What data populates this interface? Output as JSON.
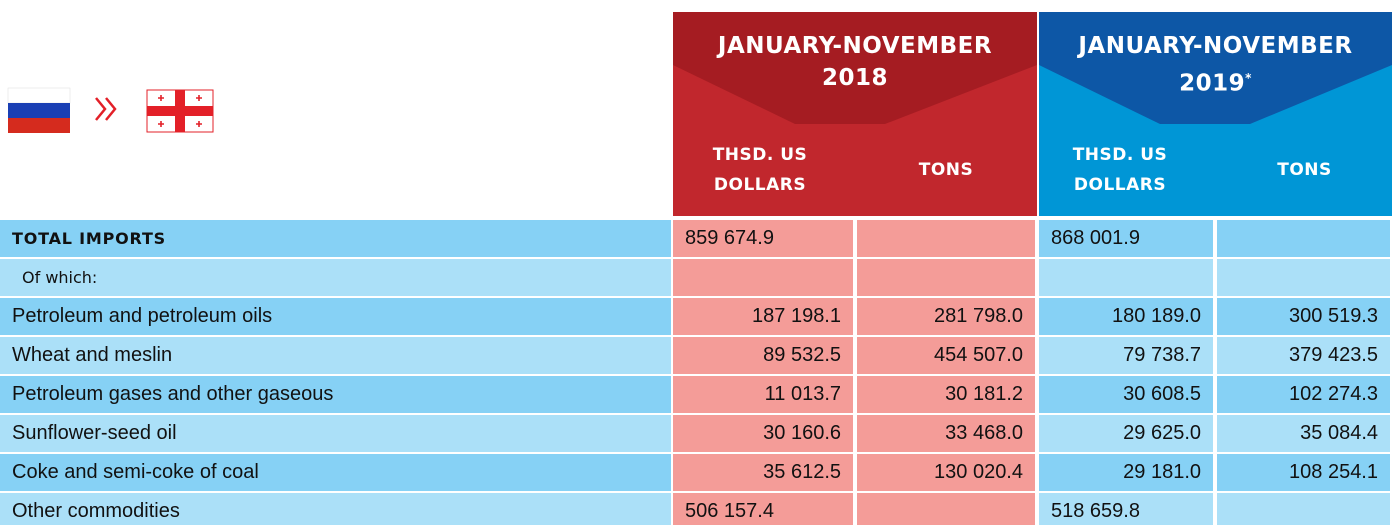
{
  "header": {
    "periods": [
      {
        "title": "JANUARY-NOVEMBER",
        "year": "2018"
      },
      {
        "title": "JANUARY-NOVEMBER",
        "year": "2019",
        "note": "*"
      }
    ],
    "columns": [
      "THSD. US DOLLARS",
      "TONS"
    ]
  },
  "table": {
    "rows": [
      {
        "label": "TOTAL IMPORTS",
        "values": [
          "859 674.9",
          null,
          "868 001.9",
          null
        ]
      },
      {
        "label": "Of which:",
        "values": [
          null,
          null,
          null,
          null
        ]
      },
      {
        "label": "Petroleum and petroleum oils",
        "values": [
          "187 198.1",
          "281 798.0",
          "180 189.0",
          "300 519.3"
        ]
      },
      {
        "label": "Wheat and meslin",
        "values": [
          "89 532.5",
          "454 507.0",
          "79 738.7",
          "379 423.5"
        ]
      },
      {
        "label": "Petroleum gases and other gaseous",
        "values": [
          "11 013.7",
          "30 181.2",
          "30 608.5",
          "102 274.3"
        ]
      },
      {
        "label": "Sunflower-seed oil",
        "values": [
          "30 160.6",
          "33 468.0",
          "29 625.0",
          "35 084.4"
        ]
      },
      {
        "label": "Coke and semi-coke of coal",
        "values": [
          "35 612.5",
          "130 020.4",
          "29 181.0",
          "108 254.1"
        ]
      },
      {
        "label": "Other commodities",
        "values": [
          "506 157.4",
          null,
          "518 659.8",
          null
        ]
      }
    ]
  }
}
